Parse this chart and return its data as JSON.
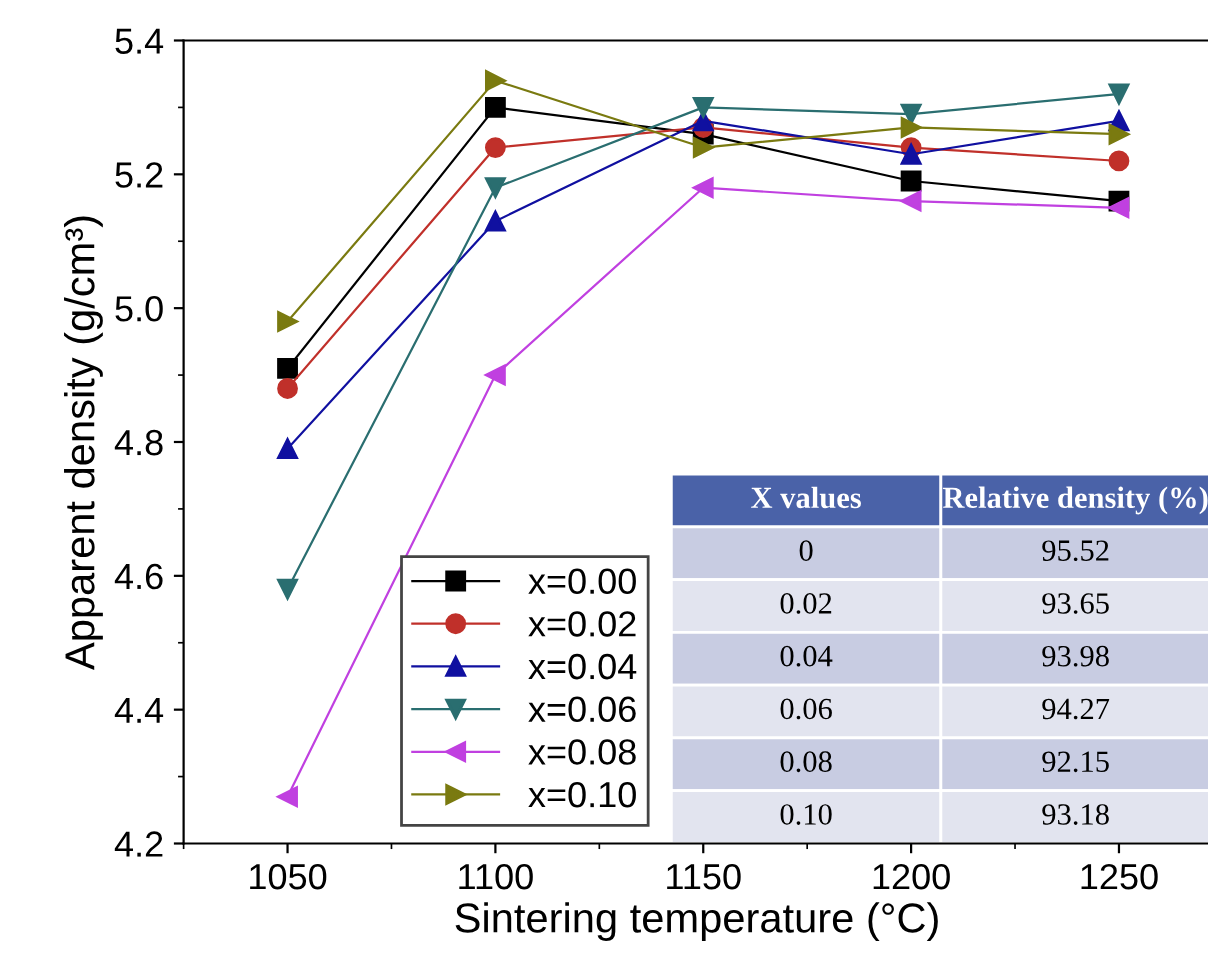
{
  "chart_data": {
    "type": "line",
    "xlabel": "Sintering temperature (°C)",
    "ylabel": "Apparent density (g/cm³)",
    "x": [
      1050,
      1100,
      1150,
      1200,
      1250
    ],
    "xlim": [
      1025,
      1272
    ],
    "xticks": [
      1050,
      1100,
      1150,
      1200,
      1250
    ],
    "ylim": [
      4.2,
      5.4
    ],
    "yticks": [
      4.2,
      4.4,
      4.6,
      4.8,
      {
        "value": 5.0,
        "label": "5.0"
      },
      5.2,
      5.4
    ],
    "grid": false,
    "legend": "bottom",
    "line_style": "solid",
    "series": [
      {
        "name": "x=0.00",
        "color": "#000000",
        "marker": "square",
        "values": [
          4.91,
          5.3,
          5.26,
          5.19,
          5.16
        ]
      },
      {
        "name": "x=0.02",
        "color": "#c0302a",
        "marker": "circle",
        "values": [
          4.88,
          5.24,
          5.27,
          5.24,
          5.22
        ]
      },
      {
        "name": "x=0.04",
        "color": "#1010a0",
        "marker": "triangle",
        "values": [
          4.79,
          5.13,
          5.28,
          5.23,
          5.28
        ]
      },
      {
        "name": "x=0.06",
        "color": "#2a6e70",
        "marker": "triangle_down",
        "values": [
          4.58,
          5.18,
          5.3,
          5.29,
          5.32
        ]
      },
      {
        "name": "x=0.08",
        "color": "#c040e0",
        "marker": "triangle_left",
        "values": [
          4.27,
          4.9,
          5.18,
          5.16,
          5.15
        ]
      },
      {
        "name": "x=0.10",
        "color": "#7a7a10",
        "marker": "triangle_right",
        "values": [
          4.98,
          5.34,
          5.24,
          5.27,
          5.26
        ]
      }
    ],
    "annotations": [
      "X values",
      "Relative density (%)",
      "0",
      "95.52",
      "0.02",
      "93.65",
      "0.04",
      "93.98",
      "0.06",
      "94.27",
      "0.08",
      "92.15",
      "0.10",
      "93.18"
    ]
  }
}
